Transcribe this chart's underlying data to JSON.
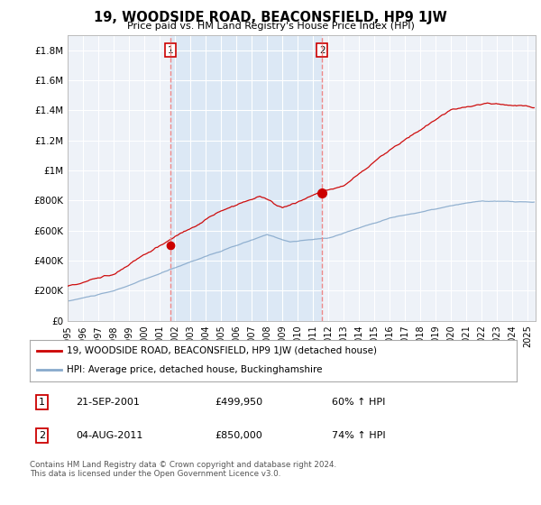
{
  "title": "19, WOODSIDE ROAD, BEACONSFIELD, HP9 1JW",
  "subtitle": "Price paid vs. HM Land Registry's House Price Index (HPI)",
  "ylabel_ticks": [
    "£0",
    "£200K",
    "£400K",
    "£600K",
    "£800K",
    "£1M",
    "£1.2M",
    "£1.4M",
    "£1.6M",
    "£1.8M"
  ],
  "ytick_values": [
    0,
    200000,
    400000,
    600000,
    800000,
    1000000,
    1200000,
    1400000,
    1600000,
    1800000
  ],
  "ylim": [
    0,
    1900000
  ],
  "xlim_start": 1995.0,
  "xlim_end": 2025.5,
  "transaction1": {
    "date_x": 2001.72,
    "price": 499950,
    "label": "1"
  },
  "transaction2": {
    "date_x": 2011.58,
    "price": 850000,
    "label": "2"
  },
  "legend_line1": "19, WOODSIDE ROAD, BEACONSFIELD, HP9 1JW (detached house)",
  "legend_line2": "HPI: Average price, detached house, Buckinghamshire",
  "table_row1": [
    "1",
    "21-SEP-2001",
    "£499,950",
    "60% ↑ HPI"
  ],
  "table_row2": [
    "2",
    "04-AUG-2011",
    "£850,000",
    "74% ↑ HPI"
  ],
  "footer": "Contains HM Land Registry data © Crown copyright and database right 2024.\nThis data is licensed under the Open Government Licence v3.0.",
  "line_color_red": "#cc0000",
  "line_color_blue": "#88aacc",
  "vline_color": "#ee8888",
  "shade_color": "#dce8f5",
  "background_color": "#ffffff",
  "plot_bg_color": "#eef2f8"
}
